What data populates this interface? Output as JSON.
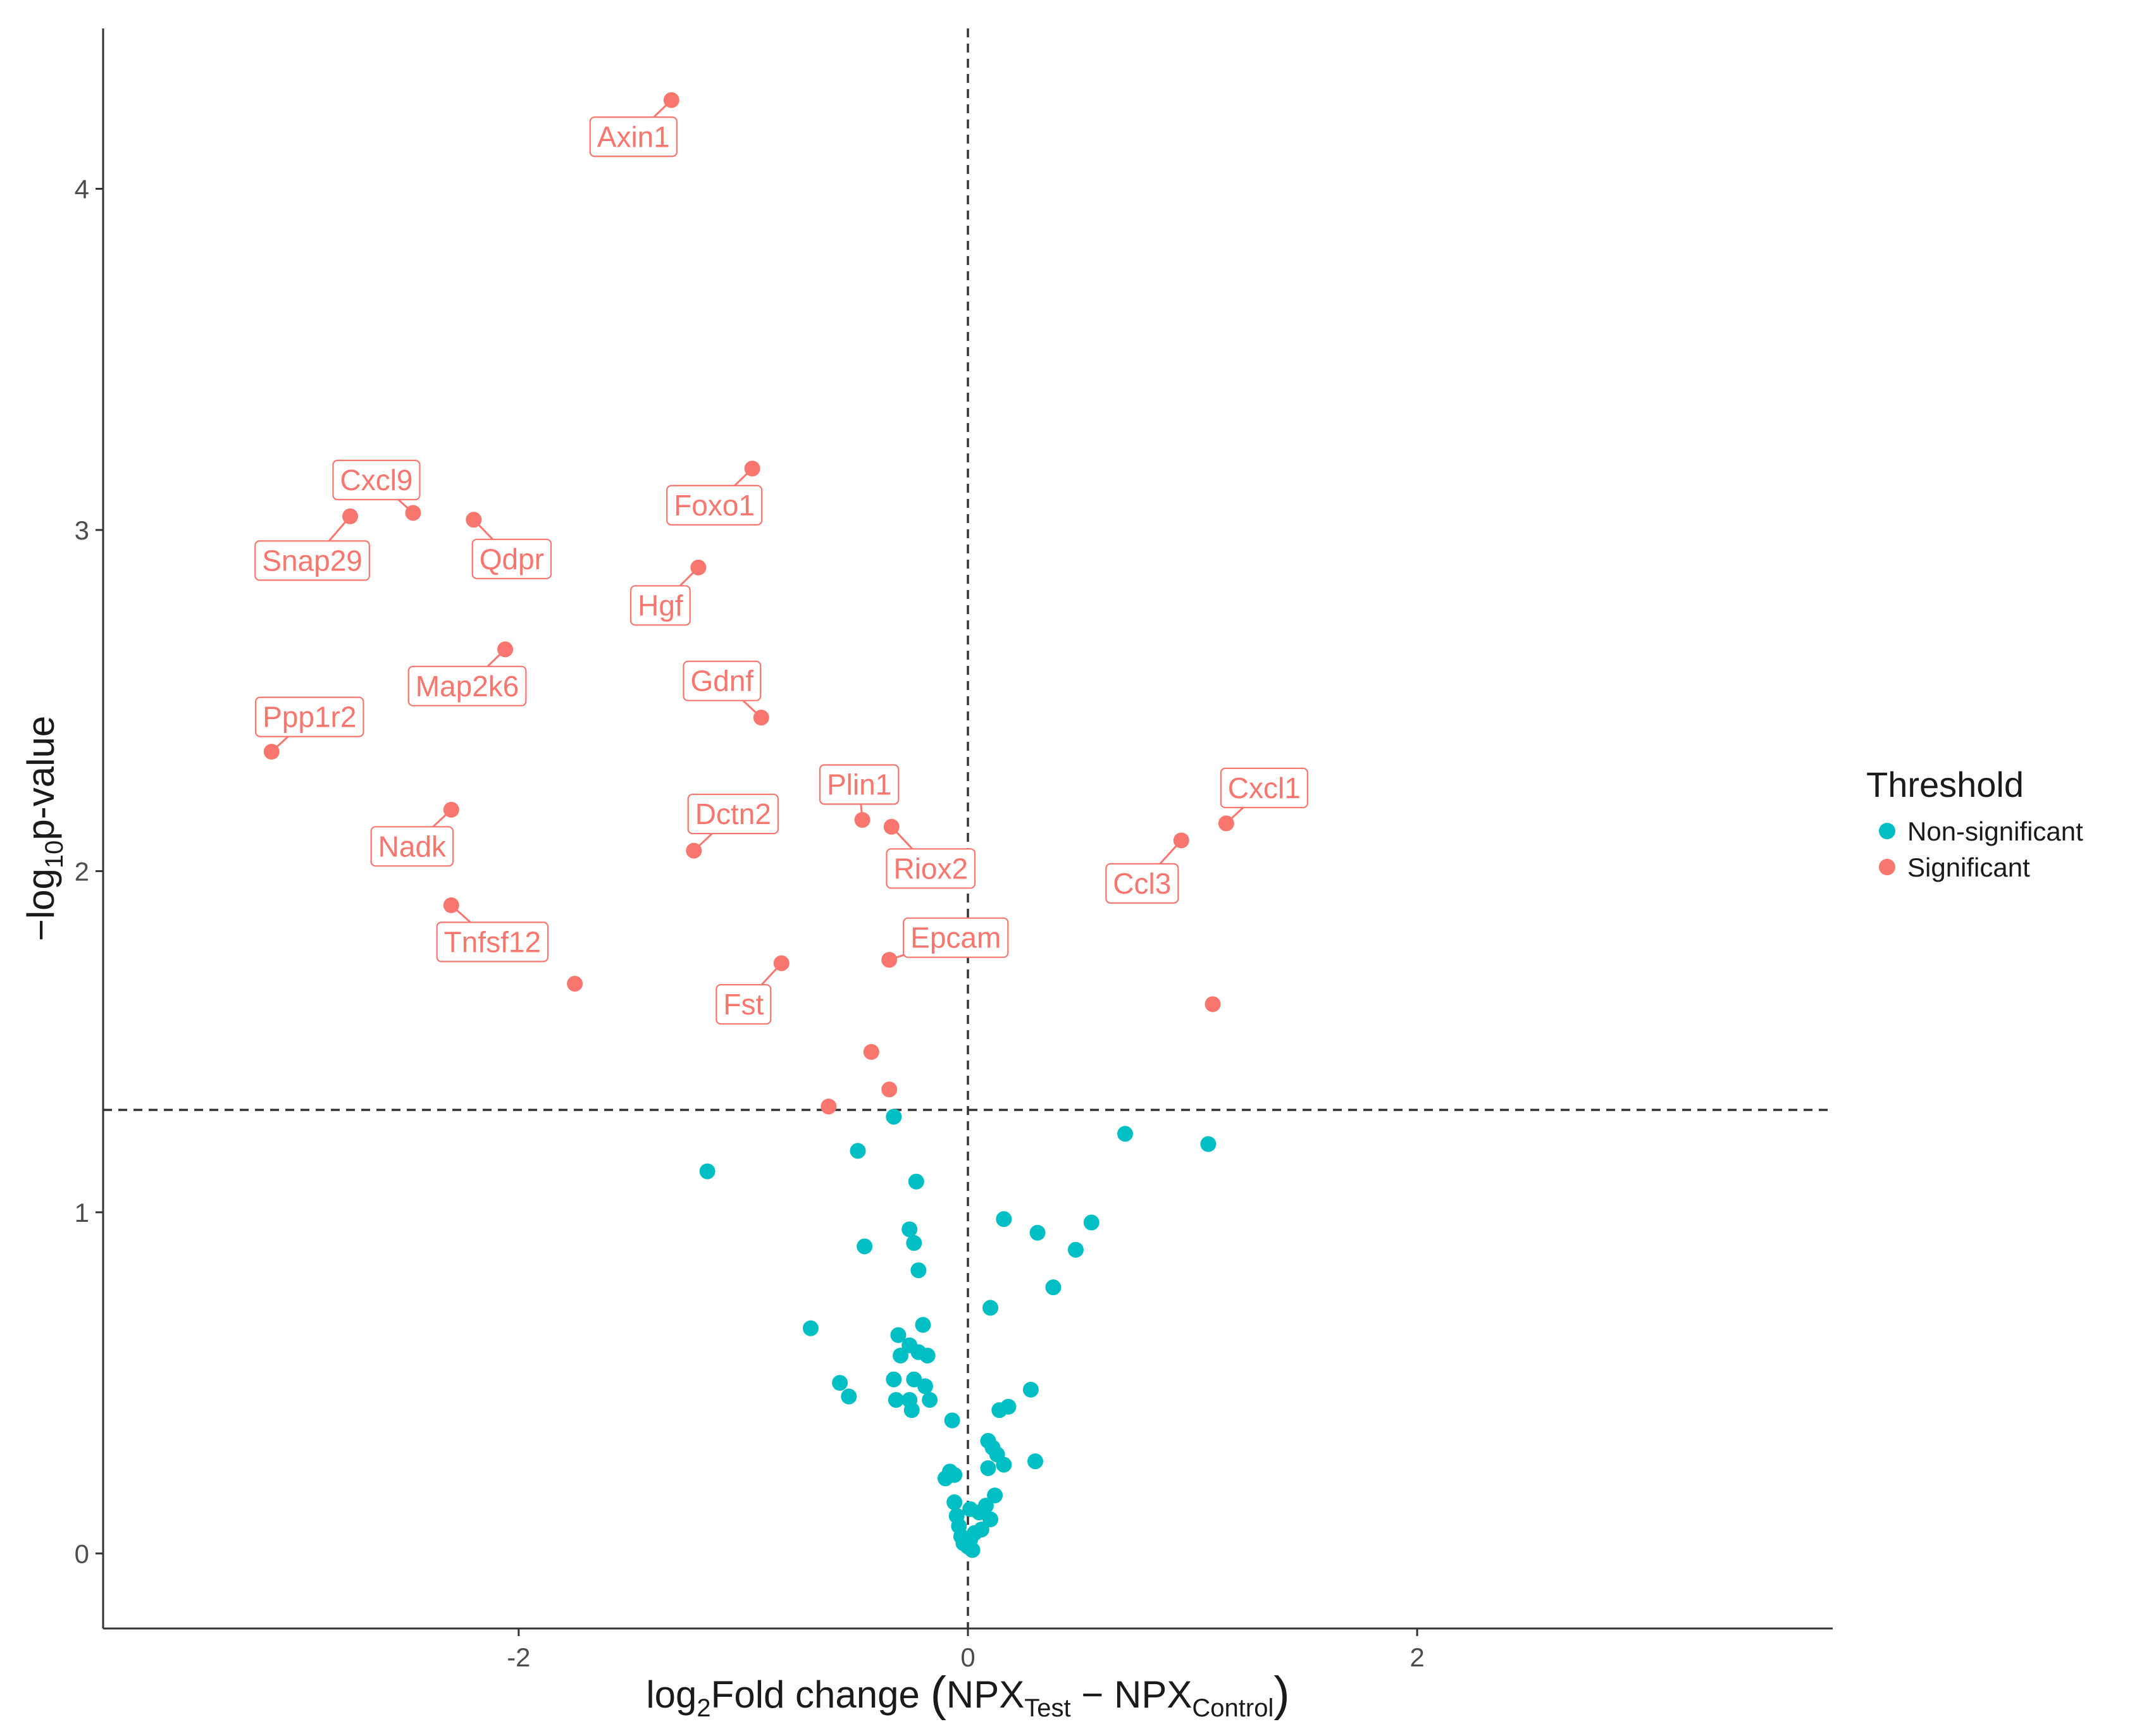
{
  "colors": {
    "non_significant": "#00BFC4",
    "significant": "#F8766D",
    "label_text": "#F8766D",
    "axis": "#333333",
    "threshold_line": "#333333"
  },
  "chart_data": {
    "type": "scatter",
    "title": "",
    "xlabel": {
      "prefix": "log",
      "prefix_sub": "2",
      "main": "Fold change ",
      "term1": "NPX",
      "term1_sub": "Test",
      "minus": " − ",
      "term2": "NPX",
      "term2_sub": "Control"
    },
    "ylabel": {
      "prefix": "−log",
      "prefix_sub": "10",
      "main": "p-value"
    },
    "xlim": [
      -3.85,
      3.85
    ],
    "ylim": [
      -0.22,
      4.47
    ],
    "x_ticks": [
      -2,
      0,
      2
    ],
    "x_tick_labels": [
      "-2",
      "0",
      "2"
    ],
    "y_ticks": [
      0,
      1,
      2,
      3,
      4
    ],
    "y_tick_labels": [
      "0",
      "1",
      "2",
      "3",
      "4"
    ],
    "grid": false,
    "threshold_lines": {
      "x": 0,
      "y": 1.3
    },
    "legend": {
      "title": "Threshold",
      "position": "right",
      "entries": [
        "Non-significant",
        "Significant"
      ]
    },
    "series": [
      {
        "name": "Significant",
        "points": [
          {
            "x": -1.32,
            "y": 4.26,
            "label": "Axin1"
          },
          {
            "x": -0.96,
            "y": 3.18,
            "label": "Foxo1"
          },
          {
            "x": -2.47,
            "y": 3.05,
            "label": "Cxcl9"
          },
          {
            "x": -2.75,
            "y": 3.04,
            "label": "Snap29"
          },
          {
            "x": -2.2,
            "y": 3.03,
            "label": "Qdpr"
          },
          {
            "x": -1.2,
            "y": 2.89,
            "label": "Hgf"
          },
          {
            "x": -2.06,
            "y": 2.65,
            "label": "Map2k6"
          },
          {
            "x": -0.92,
            "y": 2.45,
            "label": "Gdnf"
          },
          {
            "x": -3.1,
            "y": 2.35,
            "label": "Ppp1r2"
          },
          {
            "x": -2.3,
            "y": 2.18,
            "label": "Nadk"
          },
          {
            "x": -0.47,
            "y": 2.15,
            "label": "Plin1"
          },
          {
            "x": -0.34,
            "y": 2.13,
            "label": "Riox2"
          },
          {
            "x": 1.15,
            "y": 2.14,
            "label": "Cxcl1"
          },
          {
            "x": 0.95,
            "y": 2.09,
            "label": "Ccl3"
          },
          {
            "x": -1.22,
            "y": 2.06,
            "label": "Dctn2"
          },
          {
            "x": -2.3,
            "y": 1.9,
            "label": "Tnfsf12"
          },
          {
            "x": -0.35,
            "y": 1.74,
            "label": "Epcam"
          },
          {
            "x": -0.83,
            "y": 1.73,
            "label": "Fst"
          },
          {
            "x": -1.75,
            "y": 1.67,
            "label": ""
          },
          {
            "x": 1.09,
            "y": 1.61,
            "label": ""
          },
          {
            "x": -0.43,
            "y": 1.47,
            "label": ""
          },
          {
            "x": -0.35,
            "y": 1.36,
            "label": ""
          },
          {
            "x": -0.62,
            "y": 1.31,
            "label": ""
          }
        ]
      },
      {
        "name": "Non-significant",
        "points": [
          {
            "x": -0.33,
            "y": 1.28
          },
          {
            "x": 0.7,
            "y": 1.23
          },
          {
            "x": 1.07,
            "y": 1.2
          },
          {
            "x": -0.49,
            "y": 1.18
          },
          {
            "x": -1.16,
            "y": 1.12
          },
          {
            "x": -0.23,
            "y": 1.09
          },
          {
            "x": 0.16,
            "y": 0.98
          },
          {
            "x": 0.55,
            "y": 0.97
          },
          {
            "x": -0.26,
            "y": 0.95
          },
          {
            "x": 0.31,
            "y": 0.94
          },
          {
            "x": -0.24,
            "y": 0.91
          },
          {
            "x": -0.46,
            "y": 0.9
          },
          {
            "x": 0.48,
            "y": 0.89
          },
          {
            "x": -0.22,
            "y": 0.83
          },
          {
            "x": 0.38,
            "y": 0.78
          },
          {
            "x": 0.1,
            "y": 0.72
          },
          {
            "x": -0.7,
            "y": 0.66
          },
          {
            "x": -0.2,
            "y": 0.67
          },
          {
            "x": -0.31,
            "y": 0.64
          },
          {
            "x": -0.26,
            "y": 0.61
          },
          {
            "x": -0.22,
            "y": 0.59
          },
          {
            "x": -0.3,
            "y": 0.58
          },
          {
            "x": -0.18,
            "y": 0.58
          },
          {
            "x": -0.57,
            "y": 0.5
          },
          {
            "x": -0.33,
            "y": 0.51
          },
          {
            "x": -0.24,
            "y": 0.51
          },
          {
            "x": -0.19,
            "y": 0.49
          },
          {
            "x": 0.28,
            "y": 0.48
          },
          {
            "x": -0.53,
            "y": 0.46
          },
          {
            "x": -0.32,
            "y": 0.45
          },
          {
            "x": -0.26,
            "y": 0.45
          },
          {
            "x": -0.17,
            "y": 0.45
          },
          {
            "x": -0.25,
            "y": 0.42
          },
          {
            "x": 0.18,
            "y": 0.43
          },
          {
            "x": 0.14,
            "y": 0.42
          },
          {
            "x": -0.07,
            "y": 0.39
          },
          {
            "x": 0.09,
            "y": 0.33
          },
          {
            "x": 0.11,
            "y": 0.31
          },
          {
            "x": 0.13,
            "y": 0.29
          },
          {
            "x": 0.3,
            "y": 0.27
          },
          {
            "x": 0.16,
            "y": 0.26
          },
          {
            "x": 0.09,
            "y": 0.25
          },
          {
            "x": -0.08,
            "y": 0.24
          },
          {
            "x": -0.06,
            "y": 0.23
          },
          {
            "x": -0.1,
            "y": 0.22
          },
          {
            "x": 0.12,
            "y": 0.17
          },
          {
            "x": 0.08,
            "y": 0.14
          },
          {
            "x": -0.06,
            "y": 0.15
          },
          {
            "x": 0.01,
            "y": 0.13
          },
          {
            "x": -0.05,
            "y": 0.11
          },
          {
            "x": 0.05,
            "y": 0.12
          },
          {
            "x": 0.1,
            "y": 0.1
          },
          {
            "x": -0.04,
            "y": 0.08
          },
          {
            "x": 0.03,
            "y": 0.06
          },
          {
            "x": 0.06,
            "y": 0.07
          },
          {
            "x": -0.03,
            "y": 0.05
          },
          {
            "x": 0.01,
            "y": 0.04
          },
          {
            "x": -0.02,
            "y": 0.03
          },
          {
            "x": 0.0,
            "y": 0.02
          },
          {
            "x": 0.02,
            "y": 0.01
          }
        ]
      }
    ]
  }
}
